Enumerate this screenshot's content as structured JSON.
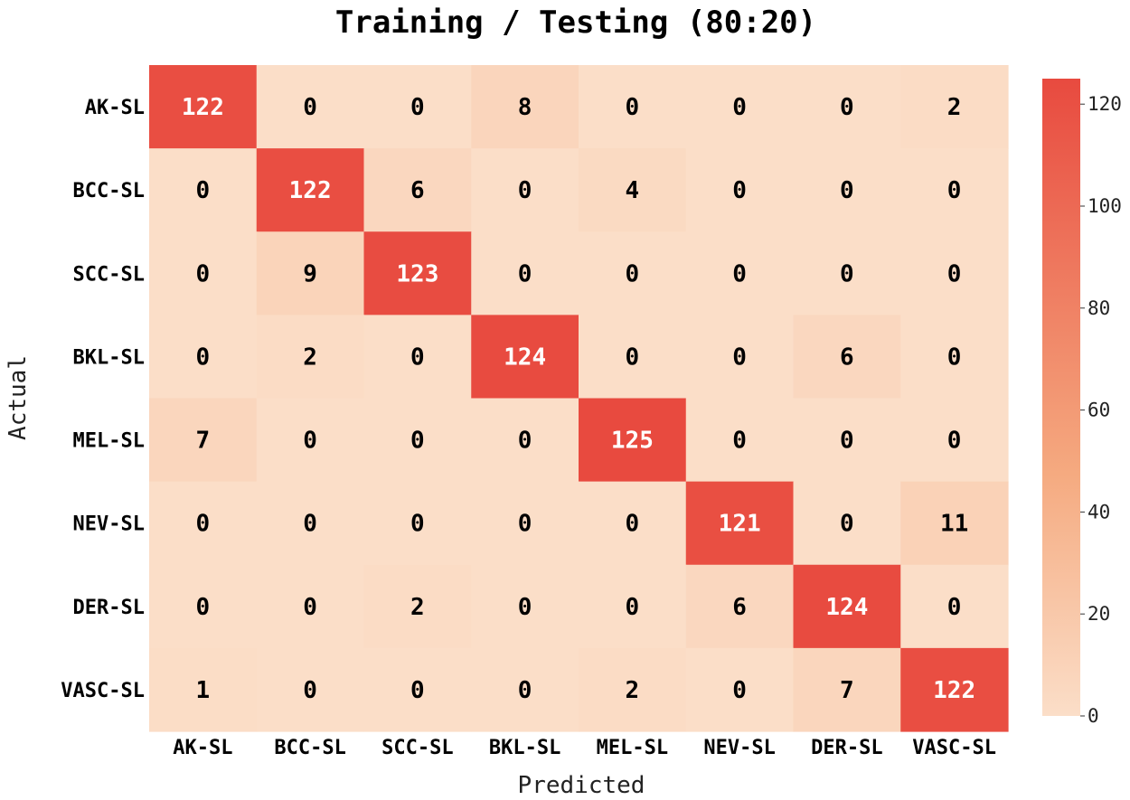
{
  "chart_data": {
    "type": "heatmap",
    "title": "Training / Testing (80:20)",
    "xlabel": "Predicted",
    "ylabel": "Actual",
    "x_categories": [
      "AK-SL",
      "BCC-SL",
      "SCC-SL",
      "BKL-SL",
      "MEL-SL",
      "NEV-SL",
      "DER-SL",
      "VASC-SL"
    ],
    "y_categories": [
      "AK-SL",
      "BCC-SL",
      "SCC-SL",
      "BKL-SL",
      "MEL-SL",
      "NEV-SL",
      "DER-SL",
      "VASC-SL"
    ],
    "values": [
      [
        122,
        0,
        0,
        8,
        0,
        0,
        0,
        2
      ],
      [
        0,
        122,
        6,
        0,
        4,
        0,
        0,
        0
      ],
      [
        0,
        9,
        123,
        0,
        0,
        0,
        0,
        0
      ],
      [
        0,
        2,
        0,
        124,
        0,
        0,
        6,
        0
      ],
      [
        7,
        0,
        0,
        0,
        125,
        0,
        0,
        0
      ],
      [
        0,
        0,
        0,
        0,
        0,
        121,
        0,
        11
      ],
      [
        0,
        0,
        2,
        0,
        0,
        6,
        124,
        0
      ],
      [
        1,
        0,
        0,
        0,
        2,
        0,
        7,
        122
      ]
    ],
    "colorbar": {
      "min": 0,
      "max": 125,
      "ticks": [
        "0",
        "20",
        "40",
        "60",
        "80",
        "100",
        "120"
      ],
      "colors": {
        "low": "#fbdec8",
        "mid": "#f5aa80",
        "high": "#e84a3f"
      }
    },
    "annotation_colors": {
      "dark": "#000000",
      "light": "#ffffff"
    }
  }
}
